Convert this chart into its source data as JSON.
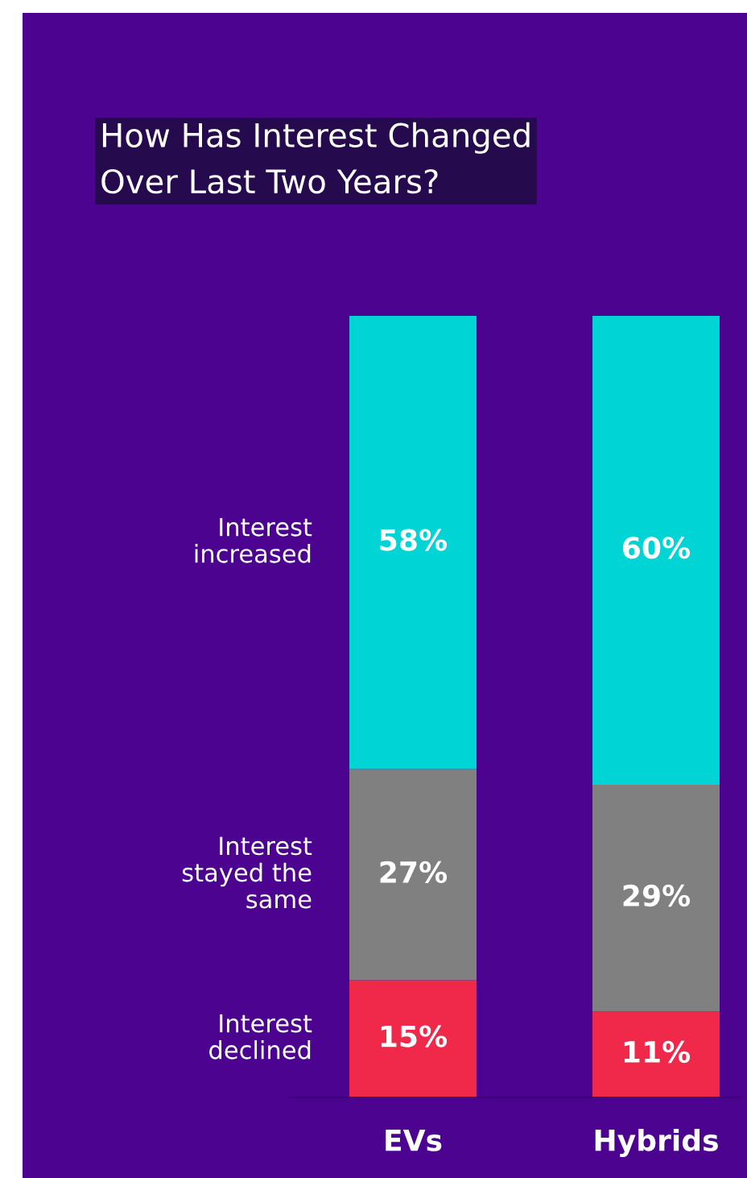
{
  "chart_data": {
    "type": "bar",
    "stacked": true,
    "title": "How Has Interest Changed\nOver Last Two Years?",
    "categories": [
      "EVs",
      "Hybrids"
    ],
    "series": [
      {
        "name": "Interest\ndeclined",
        "color": "#f0284a",
        "values": [
          15,
          11
        ],
        "value_labels": [
          "15%",
          "11%"
        ]
      },
      {
        "name": "Interest\nstayed the\nsame",
        "color": "#808080",
        "values": [
          27,
          29
        ],
        "value_labels": [
          "27%",
          "29%"
        ]
      },
      {
        "name": "Interest\nincreased",
        "color": "#00d4d4",
        "values": [
          58,
          60
        ],
        "value_labels": [
          "58%",
          "60%"
        ]
      }
    ],
    "legend": false
  }
}
